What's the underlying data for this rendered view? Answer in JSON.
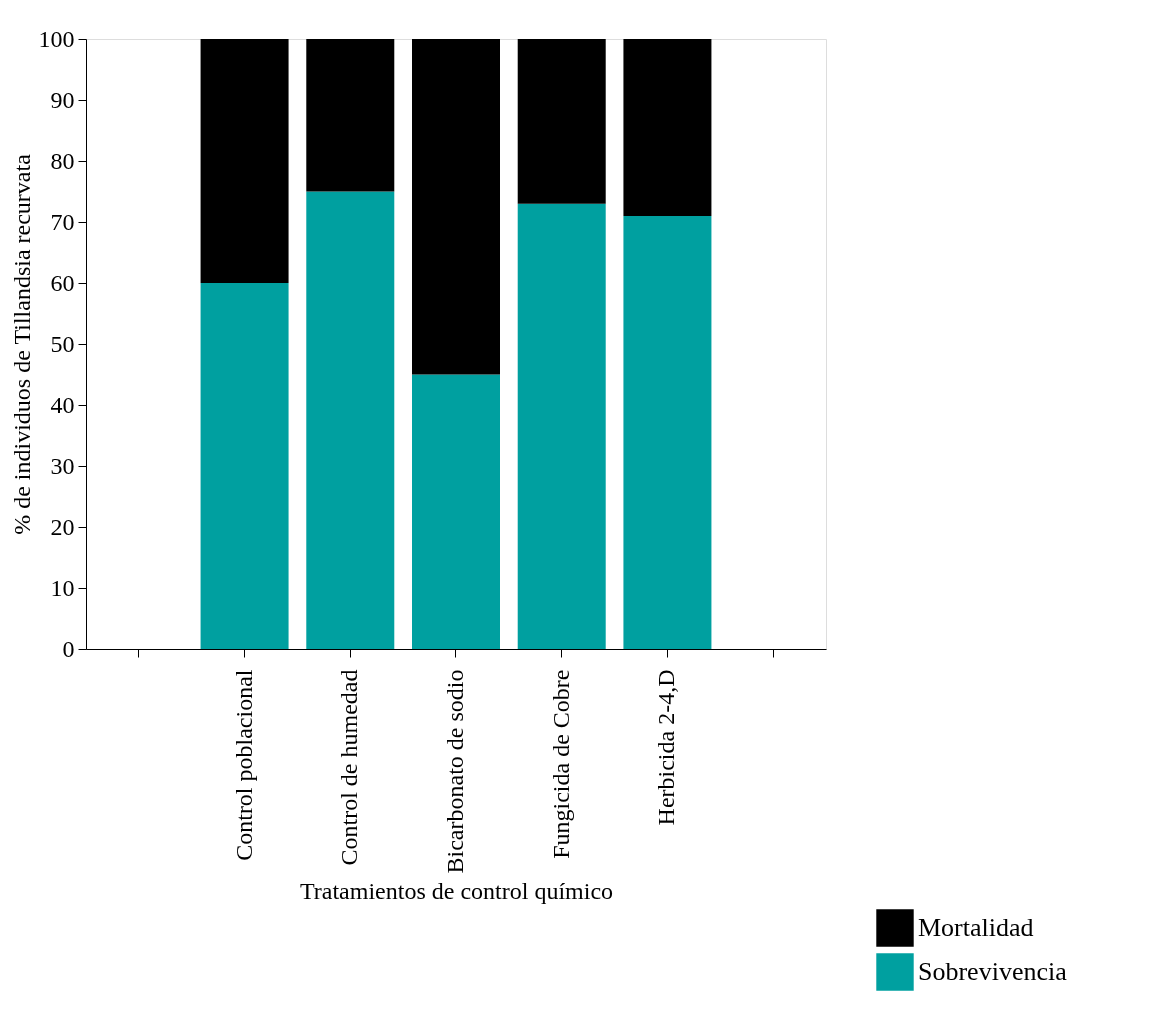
{
  "chart_data": {
    "type": "bar",
    "stacked": true,
    "xlabel": "Tratamientos de control químico",
    "ylabel": "% de individuos de Tillandsia recurvata",
    "categories": [
      null,
      "Control poblacional",
      "Control de humedad",
      "Bicarbonato de sodio",
      "Fungicida de Cobre",
      "Herbicida 2-4,D",
      null
    ],
    "series": [
      {
        "name": "Sobrevivencia",
        "color": "#00a0a0",
        "values": [
          null,
          60,
          75,
          45,
          73,
          71,
          null
        ]
      },
      {
        "name": "Mortalidad",
        "color": "#000000",
        "values": [
          null,
          40,
          25,
          55,
          27,
          29,
          null
        ]
      }
    ],
    "ylim": [
      0,
      100
    ],
    "yticks": [
      0,
      10,
      20,
      30,
      40,
      50,
      60,
      70,
      80,
      90,
      100
    ],
    "grid": false,
    "legend": "bottom right"
  }
}
